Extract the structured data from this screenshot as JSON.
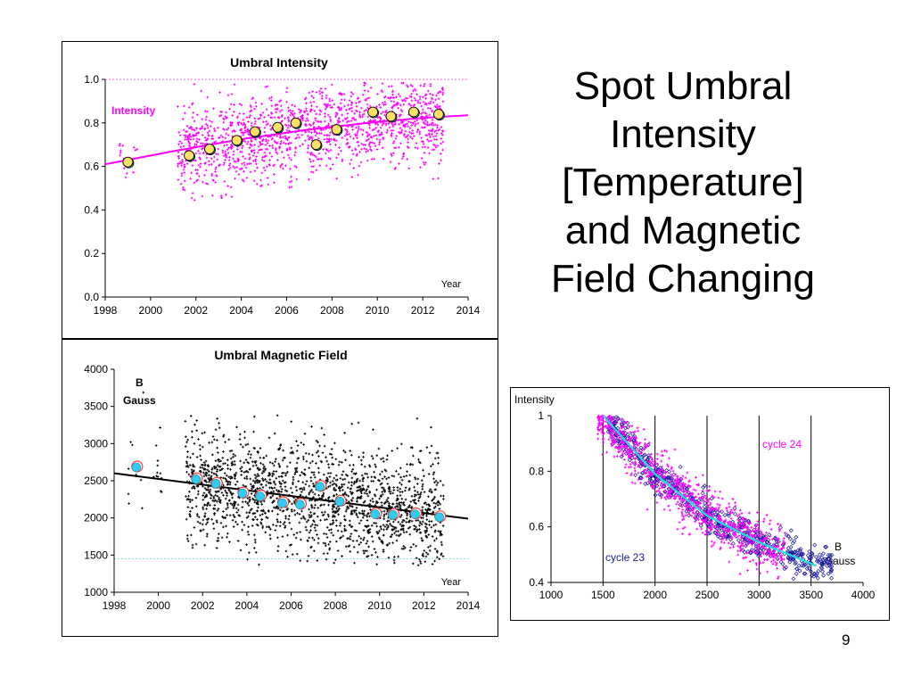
{
  "slide": {
    "title_lines": [
      "Spot Umbral",
      "Intensity",
      "[Temperature]",
      "and Magnetic",
      "Field Changing"
    ],
    "page_number": "9"
  },
  "chart_data": [
    {
      "type": "scatter",
      "title": "Umbral Intensity",
      "series_label": "Intensity",
      "xlabel": "Year",
      "xlim": [
        1998,
        2014
      ],
      "ylim": [
        0.0,
        1.0
      ],
      "xticks": [
        1998,
        2000,
        2002,
        2004,
        2006,
        2008,
        2010,
        2012,
        2014
      ],
      "yticks": [
        "0.0",
        "0.2",
        "0.4",
        "0.6",
        "0.8",
        "1.0"
      ],
      "reference_line_y": 1.0,
      "colors": {
        "points": "#ff00ff",
        "trend": "#ff00ff",
        "means": "#ffe066",
        "means_alt": "#33ccee",
        "reference": "#ff66cc"
      },
      "scatter_groups": [
        {
          "x_range": [
            1998.6,
            1999.6
          ],
          "y_mean": 0.64,
          "y_spread": 0.05,
          "density": 14
        },
        {
          "x_range": [
            2001.2,
            2012.9
          ],
          "y_mean_from_trend": true,
          "y_spread": 0.1,
          "density": 1500
        }
      ],
      "means": [
        {
          "x": 1999.0,
          "y": 0.62
        },
        {
          "x": 2001.7,
          "y": 0.65
        },
        {
          "x": 2002.6,
          "y": 0.68
        },
        {
          "x": 2003.8,
          "y": 0.72
        },
        {
          "x": 2004.6,
          "y": 0.76
        },
        {
          "x": 2005.6,
          "y": 0.78
        },
        {
          "x": 2006.4,
          "y": 0.8
        },
        {
          "x": 2007.3,
          "y": 0.7
        },
        {
          "x": 2008.2,
          "y": 0.77
        },
        {
          "x": 2009.8,
          "y": 0.85
        },
        {
          "x": 2010.6,
          "y": 0.83
        },
        {
          "x": 2011.6,
          "y": 0.85
        },
        {
          "x": 2012.7,
          "y": 0.84
        }
      ],
      "trend": {
        "x": [
          1998,
          2001,
          2004,
          2007,
          2010,
          2012,
          2014
        ],
        "y": [
          0.61,
          0.67,
          0.725,
          0.77,
          0.805,
          0.823,
          0.835
        ]
      }
    },
    {
      "type": "scatter",
      "title": "Umbral Magnetic Field",
      "series_label": [
        "B",
        "Gauss"
      ],
      "xlabel": "Year",
      "xlim": [
        1998,
        2014
      ],
      "ylim": [
        1000,
        4000
      ],
      "xticks": [
        1998,
        2000,
        2002,
        2004,
        2006,
        2008,
        2010,
        2012,
        2014
      ],
      "yticks": [
        "1000",
        "1500",
        "2000",
        "2500",
        "3000",
        "3500",
        "4000"
      ],
      "reference_line_y": 1450,
      "colors": {
        "points": "#000000",
        "trend": "#000000",
        "means": "#33ccee",
        "means_ring": "#ff3333",
        "reference": "#88dddd"
      },
      "scatter_groups": [
        {
          "x_range": [
            1998.6,
            2000.2
          ],
          "y_mean": 2650,
          "y_spread": 350,
          "density": 22
        },
        {
          "x_range": [
            2001.2,
            2012.9
          ],
          "y_mean_from_trend": true,
          "y_spread": 380,
          "density": 1800
        }
      ],
      "means": [
        {
          "x": 1999.0,
          "y": 2680
        },
        {
          "x": 2001.7,
          "y": 2520
        },
        {
          "x": 2002.6,
          "y": 2460
        },
        {
          "x": 2003.8,
          "y": 2330
        },
        {
          "x": 2004.6,
          "y": 2290
        },
        {
          "x": 2005.6,
          "y": 2200
        },
        {
          "x": 2006.4,
          "y": 2180
        },
        {
          "x": 2007.3,
          "y": 2420
        },
        {
          "x": 2008.2,
          "y": 2220
        },
        {
          "x": 2009.8,
          "y": 2050
        },
        {
          "x": 2010.6,
          "y": 2040
        },
        {
          "x": 2011.6,
          "y": 2050
        },
        {
          "x": 2012.7,
          "y": 2010
        }
      ],
      "trend": {
        "x": [
          1998,
          2014
        ],
        "y": [
          2600,
          1990
        ]
      }
    },
    {
      "type": "scatter",
      "ylabel": "Intensity",
      "xlabel": [
        "B",
        "Gauss"
      ],
      "xlim": [
        1000,
        4000
      ],
      "ylim": [
        0.4,
        1.0
      ],
      "xticks": [
        "1000",
        "1500",
        "2000",
        "2500",
        "3000",
        "3500",
        "4000"
      ],
      "yticks": [
        "0.4",
        "0.6",
        "0.8",
        "1"
      ],
      "vertical_gridlines": [
        1500,
        2000,
        2500,
        3000,
        3500
      ],
      "series": [
        {
          "name": "cycle 23",
          "color": "#1a1aa0",
          "marker": "open-diamond",
          "x_range": [
            1550,
            3700
          ],
          "density": 650
        },
        {
          "name": "cycle 24",
          "color": "#ff00ff",
          "marker": "plus",
          "x_range": [
            1450,
            3250
          ],
          "density": 1050
        }
      ],
      "fit": {
        "color": "#22dddd",
        "x": [
          1500,
          2000,
          2500,
          3000,
          3550
        ],
        "y": [
          1.0,
          0.79,
          0.64,
          0.545,
          0.46
        ]
      },
      "colors": {
        "cycle24_label": "#ff00ff",
        "cycle23_label": "#1a1aa0"
      }
    }
  ]
}
